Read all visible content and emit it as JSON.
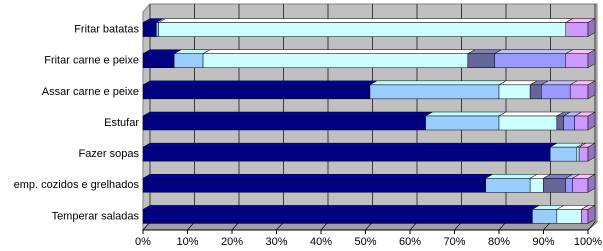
{
  "chart_data": {
    "type": "stacked-bar-horizontal-3d",
    "categories": [
      "Fritar batatas",
      "Fritar carne e peixe",
      "Assar carne e peixe",
      "Estufar",
      "Fazer sopas",
      "emp. cozidos e grelhados",
      "Temperar saladas"
    ],
    "series": [
      {
        "color": "#000080",
        "values": [
          3,
          7,
          51,
          63.5,
          91.5,
          77,
          87.5
        ]
      },
      {
        "color": "#99ccff",
        "values": [
          0.5,
          6.5,
          29,
          16.5,
          6,
          10,
          5.5
        ]
      },
      {
        "color": "#ccffff",
        "values": [
          91.5,
          59.5,
          7,
          13,
          0.5,
          3,
          5.5
        ]
      },
      {
        "color": "#666699",
        "values": [
          0,
          6,
          2.5,
          1.5,
          0,
          5,
          0
        ]
      },
      {
        "color": "#9999ff",
        "values": [
          0,
          16,
          6.5,
          2.5,
          0,
          1.5,
          0
        ]
      },
      {
        "color": "#cc99ff",
        "values": [
          5,
          5,
          4,
          3,
          2,
          3.5,
          1.5
        ]
      }
    ],
    "xlim": [
      0,
      100
    ],
    "xticks": [
      {
        "value": 0,
        "label": "0%"
      },
      {
        "value": 10,
        "label": "10%"
      },
      {
        "value": 20,
        "label": "20%"
      },
      {
        "value": 30,
        "label": "30%"
      },
      {
        "value": 40,
        "label": "40%"
      },
      {
        "value": 50,
        "label": "50%"
      },
      {
        "value": 60,
        "label": "60%"
      },
      {
        "value": 70,
        "label": "70%"
      },
      {
        "value": 80,
        "label": "80%"
      },
      {
        "value": 90,
        "label": "90%"
      },
      {
        "value": 100,
        "label": "100%"
      }
    ],
    "grid": true
  }
}
